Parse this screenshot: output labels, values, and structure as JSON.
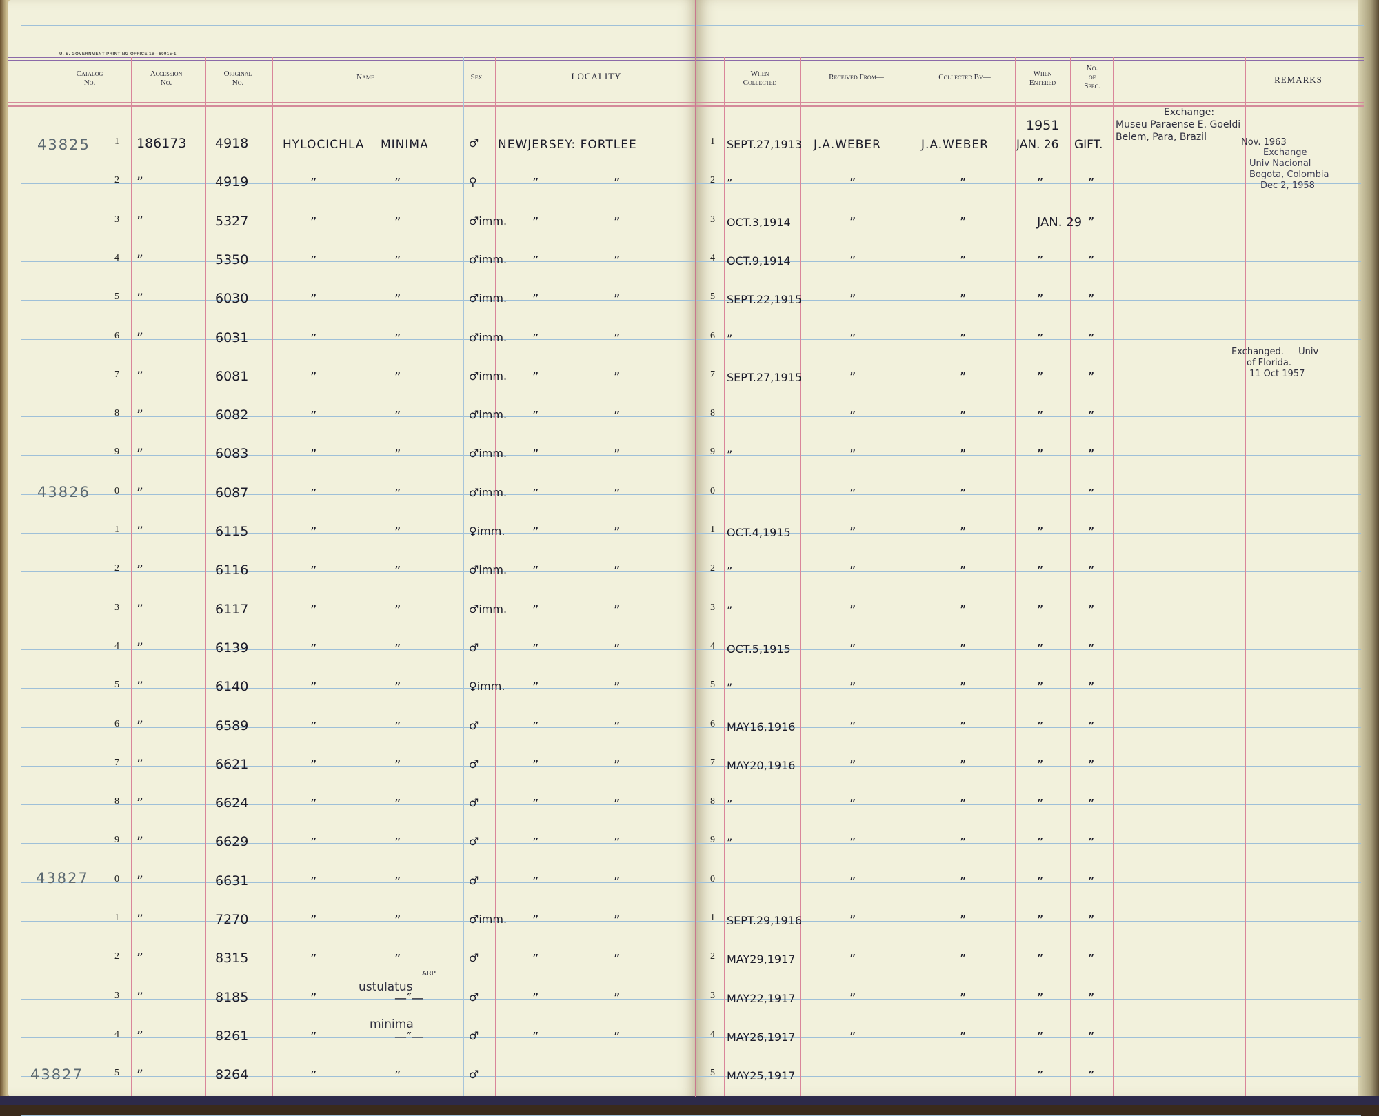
{
  "printer_mark": "U. S. GOVERNMENT PRINTING OFFICE    16—60915-1",
  "headers": {
    "catalog": [
      "Catalog",
      "No."
    ],
    "accession": [
      "Accession",
      "No."
    ],
    "original": [
      "Original",
      "No."
    ],
    "name": "Name",
    "sex": "Sex",
    "locality": "LOCALITY",
    "when_collected": [
      "When",
      "Collected"
    ],
    "received_from": "Received From—",
    "collected_by": "Collected By—",
    "when_entered": [
      "When",
      "Entered"
    ],
    "no_of_spec": [
      "No.",
      "of",
      "Spec."
    ],
    "remarks": "REMARKS"
  },
  "catalog_numbers": [
    "43825",
    "43826",
    "43827",
    "43827"
  ],
  "rows": [
    {
      "n": "1",
      "acc": "186173",
      "orig": "4918",
      "name_a": "HYLOCICHLA",
      "name_b": "MINIMA",
      "sex": "♂",
      "loc_a": "NEWJERSEY: FORTLEE",
      "loc_b": "",
      "rn": "1",
      "when": "SEPT.27,1913",
      "recv": "J.A.WEBER",
      "coll": "J.A.WEBER",
      "ent": "JAN. 26",
      "spec": "GIFT."
    },
    {
      "n": "2",
      "acc": "”",
      "orig": "4919",
      "name_a": "”",
      "name_b": "”",
      "sex": "♀",
      "loc_a": "”",
      "loc_b": "”",
      "rn": "2",
      "when": "”",
      "recv": "”",
      "coll": "”",
      "ent": "”",
      "spec": "”"
    },
    {
      "n": "3",
      "acc": "”",
      "orig": "5327",
      "name_a": "”",
      "name_b": "”",
      "sex": "♂imm.",
      "loc_a": "”",
      "loc_b": "”",
      "rn": "3",
      "when": "OCT.3,1914",
      "recv": "”",
      "coll": "”",
      "ent": "JAN. 29",
      "spec": "”"
    },
    {
      "n": "4",
      "acc": "”",
      "orig": "5350",
      "name_a": "”",
      "name_b": "”",
      "sex": "♂imm.",
      "loc_a": "”",
      "loc_b": "”",
      "rn": "4",
      "when": "OCT.9,1914",
      "recv": "”",
      "coll": "”",
      "ent": "”",
      "spec": "”"
    },
    {
      "n": "5",
      "acc": "”",
      "orig": "6030",
      "name_a": "”",
      "name_b": "”",
      "sex": "♂imm.",
      "loc_a": "”",
      "loc_b": "”",
      "rn": "5",
      "when": "SEPT.22,1915",
      "recv": "”",
      "coll": "”",
      "ent": "”",
      "spec": "”"
    },
    {
      "n": "6",
      "acc": "”",
      "orig": "6031",
      "name_a": "”",
      "name_b": "”",
      "sex": "♂imm.",
      "loc_a": "”",
      "loc_b": "”",
      "rn": "6",
      "when": "”",
      "recv": "”",
      "coll": "”",
      "ent": "”",
      "spec": "”"
    },
    {
      "n": "7",
      "acc": "”",
      "orig": "6081",
      "name_a": "”",
      "name_b": "”",
      "sex": "♂imm.",
      "loc_a": "”",
      "loc_b": "”",
      "rn": "7",
      "when": "SEPT.27,1915",
      "recv": "”",
      "coll": "”",
      "ent": "”",
      "spec": "”"
    },
    {
      "n": "8",
      "acc": "”",
      "orig": "6082",
      "name_a": "”",
      "name_b": "”",
      "sex": "♂imm.",
      "loc_a": "”",
      "loc_b": "”",
      "rn": "8",
      "when": "",
      "recv": "”",
      "coll": "”",
      "ent": "”",
      "spec": "”"
    },
    {
      "n": "9",
      "acc": "”",
      "orig": "6083",
      "name_a": "”",
      "name_b": "”",
      "sex": "♂imm.",
      "loc_a": "”",
      "loc_b": "”",
      "rn": "9",
      "when": "”",
      "recv": "”",
      "coll": "”",
      "ent": "”",
      "spec": "”"
    },
    {
      "n": "0",
      "acc": "”",
      "orig": "6087",
      "name_a": "”",
      "name_b": "”",
      "sex": "♂imm.",
      "loc_a": "”",
      "loc_b": "”",
      "rn": "0",
      "when": "",
      "recv": "”",
      "coll": "”",
      "ent": "",
      "spec": "”"
    },
    {
      "n": "1",
      "acc": "”",
      "orig": "6115",
      "name_a": "”",
      "name_b": "”",
      "sex": "♀imm.",
      "loc_a": "”",
      "loc_b": "”",
      "rn": "1",
      "when": "OCT.4,1915",
      "recv": "”",
      "coll": "”",
      "ent": "”",
      "spec": "”"
    },
    {
      "n": "2",
      "acc": "”",
      "orig": "6116",
      "name_a": "”",
      "name_b": "”",
      "sex": "♂imm.",
      "loc_a": "”",
      "loc_b": "”",
      "rn": "2",
      "when": "”",
      "recv": "”",
      "coll": "”",
      "ent": "”",
      "spec": "”"
    },
    {
      "n": "3",
      "acc": "”",
      "orig": "6117",
      "name_a": "”",
      "name_b": "”",
      "sex": "♂imm.",
      "loc_a": "”",
      "loc_b": "”",
      "rn": "3",
      "when": "”",
      "recv": "”",
      "coll": "”",
      "ent": "”",
      "spec": "”"
    },
    {
      "n": "4",
      "acc": "”",
      "orig": "6139",
      "name_a": "”",
      "name_b": "”",
      "sex": "♂",
      "loc_a": "”",
      "loc_b": "”",
      "rn": "4",
      "when": "OCT.5,1915",
      "recv": "”",
      "coll": "”",
      "ent": "”",
      "spec": "”"
    },
    {
      "n": "5",
      "acc": "”",
      "orig": "6140",
      "name_a": "”",
      "name_b": "”",
      "sex": "♀imm.",
      "loc_a": "”",
      "loc_b": "”",
      "rn": "5",
      "when": "”",
      "recv": "”",
      "coll": "”",
      "ent": "”",
      "spec": "”"
    },
    {
      "n": "6",
      "acc": "”",
      "orig": "6589",
      "name_a": "”",
      "name_b": "”",
      "sex": "♂",
      "loc_a": "”",
      "loc_b": "”",
      "rn": "6",
      "when": "MAY16,1916",
      "recv": "”",
      "coll": "”",
      "ent": "”",
      "spec": "”"
    },
    {
      "n": "7",
      "acc": "”",
      "orig": "6621",
      "name_a": "”",
      "name_b": "”",
      "sex": "♂",
      "loc_a": "”",
      "loc_b": "”",
      "rn": "7",
      "when": "MAY20,1916",
      "recv": "”",
      "coll": "”",
      "ent": "”",
      "spec": "”"
    },
    {
      "n": "8",
      "acc": "”",
      "orig": "6624",
      "name_a": "”",
      "name_b": "”",
      "sex": "♂",
      "loc_a": "”",
      "loc_b": "”",
      "rn": "8",
      "when": "”",
      "recv": "”",
      "coll": "”",
      "ent": "”",
      "spec": "”"
    },
    {
      "n": "9",
      "acc": "”",
      "orig": "6629",
      "name_a": "”",
      "name_b": "”",
      "sex": "♂",
      "loc_a": "”",
      "loc_b": "”",
      "rn": "9",
      "when": "”",
      "recv": "”",
      "coll": "”",
      "ent": "”",
      "spec": "”"
    },
    {
      "n": "0",
      "acc": "”",
      "orig": "6631",
      "name_a": "”",
      "name_b": "”",
      "sex": "♂",
      "loc_a": "”",
      "loc_b": "”",
      "rn": "0",
      "when": "",
      "recv": "”",
      "coll": "”",
      "ent": "”",
      "spec": "”"
    },
    {
      "n": "1",
      "acc": "”",
      "orig": "7270",
      "name_a": "”",
      "name_b": "”",
      "sex": "♂imm.",
      "loc_a": "”",
      "loc_b": "”",
      "rn": "1",
      "when": "SEPT.29,1916",
      "recv": "”",
      "coll": "”",
      "ent": "”",
      "spec": "”"
    },
    {
      "n": "2",
      "acc": "”",
      "orig": "8315",
      "name_a": "”",
      "name_b": "”",
      "sex": "♂",
      "loc_a": "”",
      "loc_b": "”",
      "rn": "2",
      "when": "MAY29,1917",
      "recv": "”",
      "coll": "”",
      "ent": "”",
      "spec": "”"
    },
    {
      "n": "3",
      "acc": "”",
      "orig": "8185",
      "name_a": "”",
      "name_b": "—″—",
      "sex": "♂",
      "loc_a": "”",
      "loc_b": "”",
      "rn": "3",
      "when": "MAY22,1917",
      "recv": "”",
      "coll": "”",
      "ent": "”",
      "spec": "”"
    },
    {
      "n": "4",
      "acc": "”",
      "orig": "8261",
      "name_a": "”",
      "name_b": "—″—",
      "sex": "♂",
      "loc_a": "”",
      "loc_b": "”",
      "rn": "4",
      "when": "MAY26,1917",
      "recv": "”",
      "coll": "”",
      "ent": "”",
      "spec": "”"
    },
    {
      "n": "5",
      "acc": "”",
      "orig": "8264",
      "name_a": "”",
      "name_b": "”",
      "sex": "♂",
      "loc_a": "",
      "loc_b": "",
      "rn": "5",
      "when": "MAY25,1917",
      "recv": "",
      "coll": "",
      "ent": "”",
      "spec": "”"
    }
  ],
  "annotations": {
    "year_1951": "1951",
    "exchange_note": [
      "Exchange:",
      "Museu Paraense E. Goeldi",
      "Belem, Para, Brazil"
    ],
    "nov_1963": "Nov. 1963",
    "exchange_colombia": [
      "Exchange",
      "Univ Nacional",
      "Bogota, Colombia",
      "Dec 2, 1958"
    ],
    "exchanged_florida": [
      "Exchanged. — Univ",
      "of Florida.",
      "11 Oct 1957"
    ],
    "ustulatus": "ustulatus",
    "arp": "ARP",
    "minima_note": "minima"
  }
}
